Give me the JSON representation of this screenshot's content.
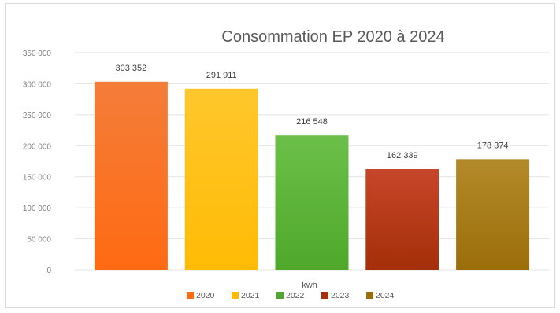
{
  "chart_data": {
    "type": "bar",
    "title": "Consommation EP 2020 à 2024",
    "xlabel": "kwh",
    "ylabel": "",
    "categories": [
      "2020",
      "2021",
      "2022",
      "2023",
      "2024"
    ],
    "values": [
      303352,
      291911,
      216548,
      162339,
      178374
    ],
    "value_labels": [
      "303 352",
      "291 911",
      "216 548",
      "162 339",
      "178 374"
    ],
    "ylim": [
      0,
      350000
    ],
    "y_ticks": [
      0,
      50000,
      100000,
      150000,
      200000,
      250000,
      300000,
      350000
    ],
    "y_tick_labels": [
      "0",
      "50 000",
      "100 000",
      "150 000",
      "200 000",
      "250 000",
      "300 000",
      "350 000"
    ],
    "grid": true,
    "legend_position": "bottom",
    "legend": [
      "2020",
      "2021",
      "2022",
      "2023",
      "2024"
    ],
    "colors": [
      {
        "top": "#f47d3a",
        "bottom": "#ff6a12"
      },
      {
        "top": "#ffc72c",
        "bottom": "#ffbb05"
      },
      {
        "top": "#6cc04a",
        "bottom": "#4fa82a"
      },
      {
        "top": "#c7462a",
        "bottom": "#a42f08"
      },
      {
        "top": "#b38a2a",
        "bottom": "#9b6e0a"
      }
    ]
  }
}
